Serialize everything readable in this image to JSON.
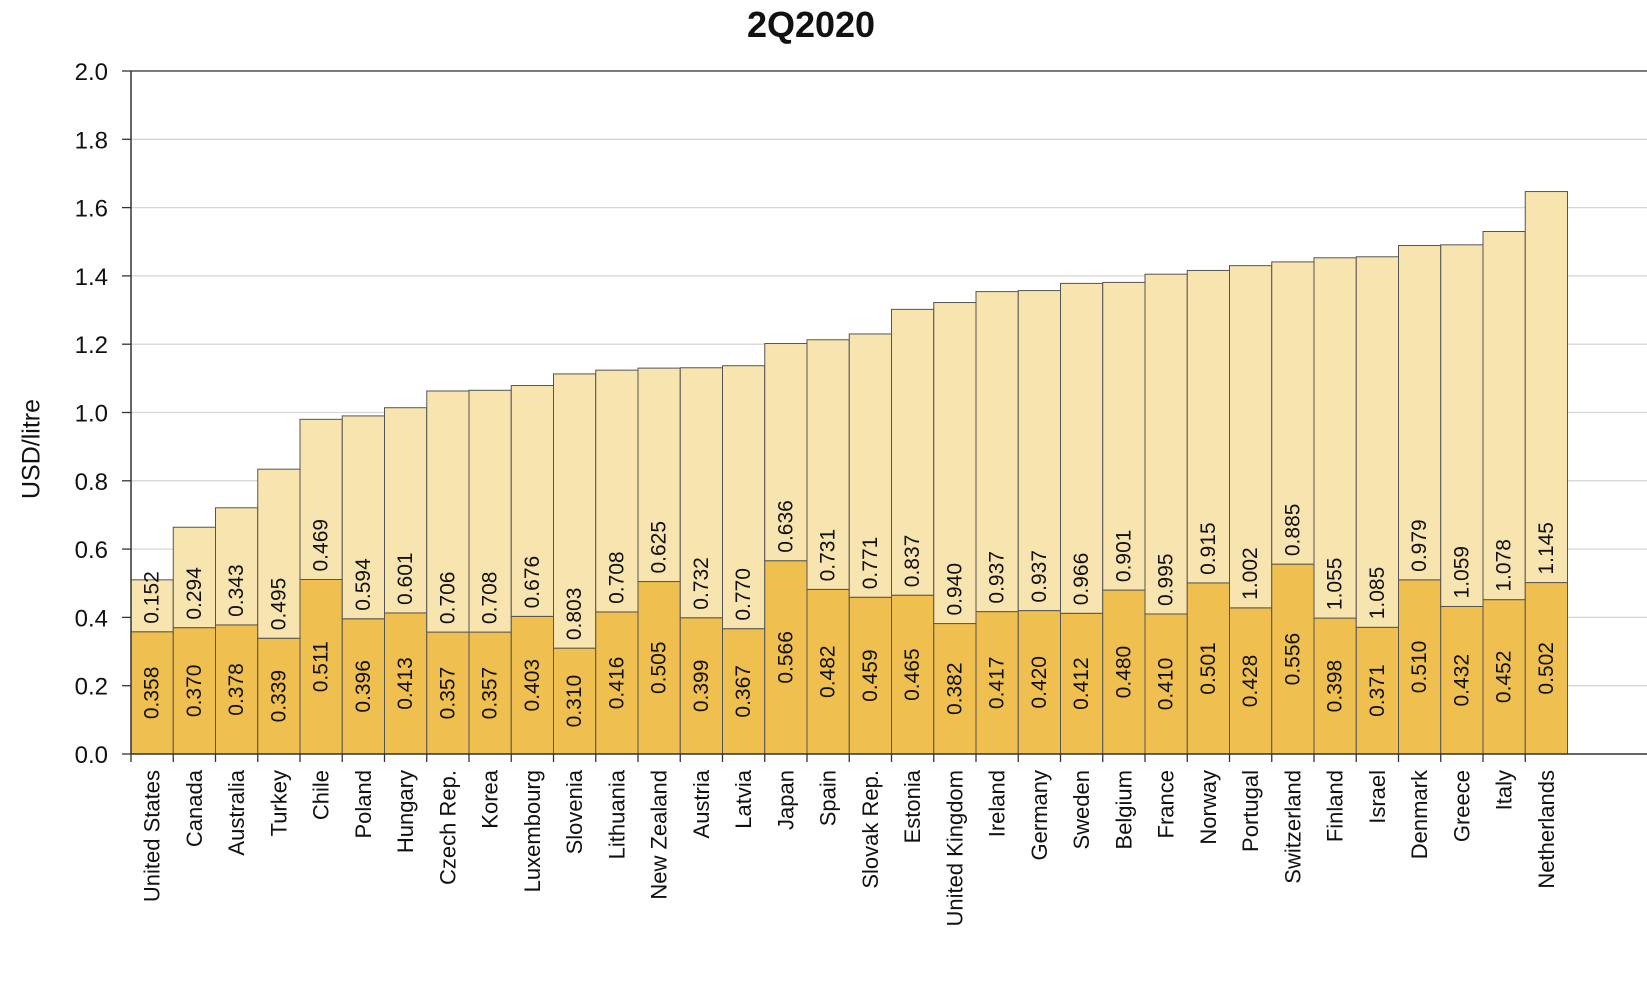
{
  "chart_data": {
    "type": "bar",
    "stacked": true,
    "title": "2Q2020",
    "xlabel": "",
    "ylabel": "USD/litre",
    "ylim": [
      0,
      2.0
    ],
    "yticks": [
      "0.0",
      "0.2",
      "0.4",
      "0.6",
      "0.8",
      "1.0",
      "1.2",
      "1.4",
      "1.6",
      "1.8",
      "2.0"
    ],
    "grid": true,
    "categories": [
      "United States",
      "Canada",
      "Australia",
      "Turkey",
      "Chile",
      "Poland",
      "Hungary",
      "Czech Rep.",
      "Korea",
      "Luxembourg",
      "Slovenia",
      "Lithuania",
      "New Zealand",
      "Austria",
      "Latvia",
      "Japan",
      "Spain",
      "Slovak Rep.",
      "Estonia",
      "United Kingdom",
      "Ireland",
      "Germany",
      "Sweden",
      "Belgium",
      "France",
      "Norway",
      "Portugal",
      "Switzerland",
      "Finland",
      "Israel",
      "Denmark",
      "Greece",
      "Italy",
      "Netherlands"
    ],
    "series": [
      {
        "values": [
          0.358,
          0.37,
          0.378,
          0.339,
          0.511,
          0.396,
          0.413,
          0.357,
          0.357,
          0.403,
          0.31,
          0.416,
          0.505,
          0.399,
          0.367,
          0.566,
          0.482,
          0.459,
          0.465,
          0.382,
          0.417,
          0.42,
          0.412,
          0.48,
          0.41,
          0.501,
          0.428,
          0.556,
          0.398,
          0.371,
          0.51,
          0.432,
          0.452,
          0.502
        ],
        "labels": [
          "0.358",
          "0.370",
          "0.378",
          "0.339",
          "0.511",
          "0.396",
          "0.413",
          "0.357",
          "0.357",
          "0.403",
          "0.310",
          "0.416",
          "0.505",
          "0.399",
          "0.367",
          "0.566",
          "0.482",
          "0.459",
          "0.465",
          "0.382",
          "0.417",
          "0.420",
          "0.412",
          "0.480",
          "0.410",
          "0.501",
          "0.428",
          "0.556",
          "0.398",
          "0.371",
          "0.510",
          "0.432",
          "0.452",
          "0.502"
        ],
        "color": "#efbf4f"
      },
      {
        "values": [
          0.152,
          0.294,
          0.343,
          0.495,
          0.469,
          0.594,
          0.601,
          0.706,
          0.708,
          0.676,
          0.803,
          0.708,
          0.625,
          0.732,
          0.77,
          0.636,
          0.731,
          0.771,
          0.837,
          0.94,
          0.937,
          0.937,
          0.966,
          0.901,
          0.995,
          0.915,
          1.002,
          0.885,
          1.055,
          1.085,
          0.979,
          1.059,
          1.078,
          1.145
        ],
        "labels": [
          "0.152",
          "0.294",
          "0.343",
          "0.495",
          "0.469",
          "0.594",
          "0.601",
          "0.706",
          "0.708",
          "0.676",
          "0.803",
          "0.708",
          "0.625",
          "0.732",
          "0.770",
          "0.636",
          "0.731",
          "0.771",
          "0.837",
          "0.940",
          "0.937",
          "0.937",
          "0.966",
          "0.901",
          "0.995",
          "0.915",
          "1.002",
          "0.885",
          "1.055",
          "1.085",
          "0.979",
          "1.059",
          "1.078",
          "1.145"
        ],
        "color": "#f8e4ae"
      }
    ],
    "colors": {
      "edge": "#555555",
      "grid": "#d6d6d6",
      "axis": "#333333"
    }
  }
}
